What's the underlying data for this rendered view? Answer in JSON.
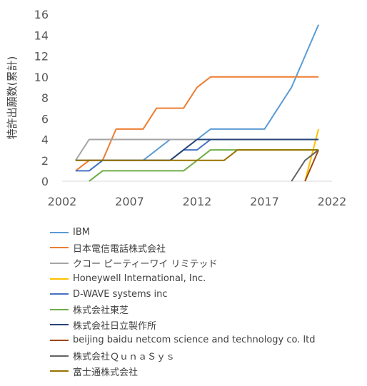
{
  "chart_data": {
    "type": "line",
    "title": "",
    "xlabel": "",
    "ylabel": "特許出願数(累計)",
    "xlim": [
      2002,
      2022
    ],
    "ylim": [
      0,
      16
    ],
    "xticks": [
      2002,
      2007,
      2012,
      2017,
      2022
    ],
    "yticks": [
      0,
      2,
      4,
      6,
      8,
      10,
      12,
      14,
      16
    ],
    "grid": false,
    "legend_position": "bottom",
    "series": [
      {
        "name": "IBM",
        "color": "#5b9bd5",
        "points": [
          [
            2008,
            2
          ],
          [
            2010,
            4
          ],
          [
            2012,
            4
          ],
          [
            2013,
            5
          ],
          [
            2017,
            5
          ],
          [
            2019,
            9
          ],
          [
            2021,
            15
          ]
        ]
      },
      {
        "name": "日本電信電話株式会社",
        "color": "#ed7d31",
        "points": [
          [
            2003,
            1
          ],
          [
            2004,
            2
          ],
          [
            2005,
            2
          ],
          [
            2006,
            5
          ],
          [
            2008,
            5
          ],
          [
            2009,
            7
          ],
          [
            2011,
            7
          ],
          [
            2012,
            9
          ],
          [
            2013,
            10
          ],
          [
            2021,
            10
          ]
        ]
      },
      {
        "name": "クコー ピーティーワイ リミテッド",
        "color": "#a5a5a5",
        "points": [
          [
            2003,
            2
          ],
          [
            2004,
            4
          ],
          [
            2021,
            4
          ]
        ]
      },
      {
        "name": "Honeywell International, Inc.",
        "color": "#ffc000",
        "points": [
          [
            2020,
            0
          ],
          [
            2021,
            5
          ]
        ]
      },
      {
        "name": "D-WAVE systems inc",
        "color": "#4472c4",
        "points": [
          [
            2003,
            1
          ],
          [
            2004,
            1
          ],
          [
            2005,
            2
          ],
          [
            2010,
            2
          ],
          [
            2011,
            3
          ],
          [
            2012,
            3
          ],
          [
            2013,
            4
          ],
          [
            2021,
            4
          ]
        ]
      },
      {
        "name": "株式会社東芝",
        "color": "#70ad47",
        "points": [
          [
            2004,
            0
          ],
          [
            2005,
            1
          ],
          [
            2011,
            1
          ],
          [
            2012,
            2
          ],
          [
            2013,
            3
          ],
          [
            2021,
            3
          ]
        ]
      },
      {
        "name": "株式会社日立製作所",
        "color": "#264478",
        "points": [
          [
            2003,
            2
          ],
          [
            2010,
            2
          ],
          [
            2011,
            3
          ],
          [
            2012,
            4
          ],
          [
            2021,
            4
          ]
        ]
      },
      {
        "name": "beijing baidu netcom science and technology co. ltd",
        "color": "#9e480e",
        "points": [
          [
            2020,
            0
          ],
          [
            2021,
            3
          ]
        ]
      },
      {
        "name": "株式会社ＱｕｎａＳｙｓ",
        "color": "#636363",
        "points": [
          [
            2019,
            0
          ],
          [
            2020,
            2
          ],
          [
            2021,
            3
          ]
        ]
      },
      {
        "name": "富士通株式会社",
        "color": "#997300",
        "points": [
          [
            2003,
            2
          ],
          [
            2014,
            2
          ],
          [
            2015,
            3
          ],
          [
            2021,
            3
          ]
        ]
      }
    ]
  }
}
